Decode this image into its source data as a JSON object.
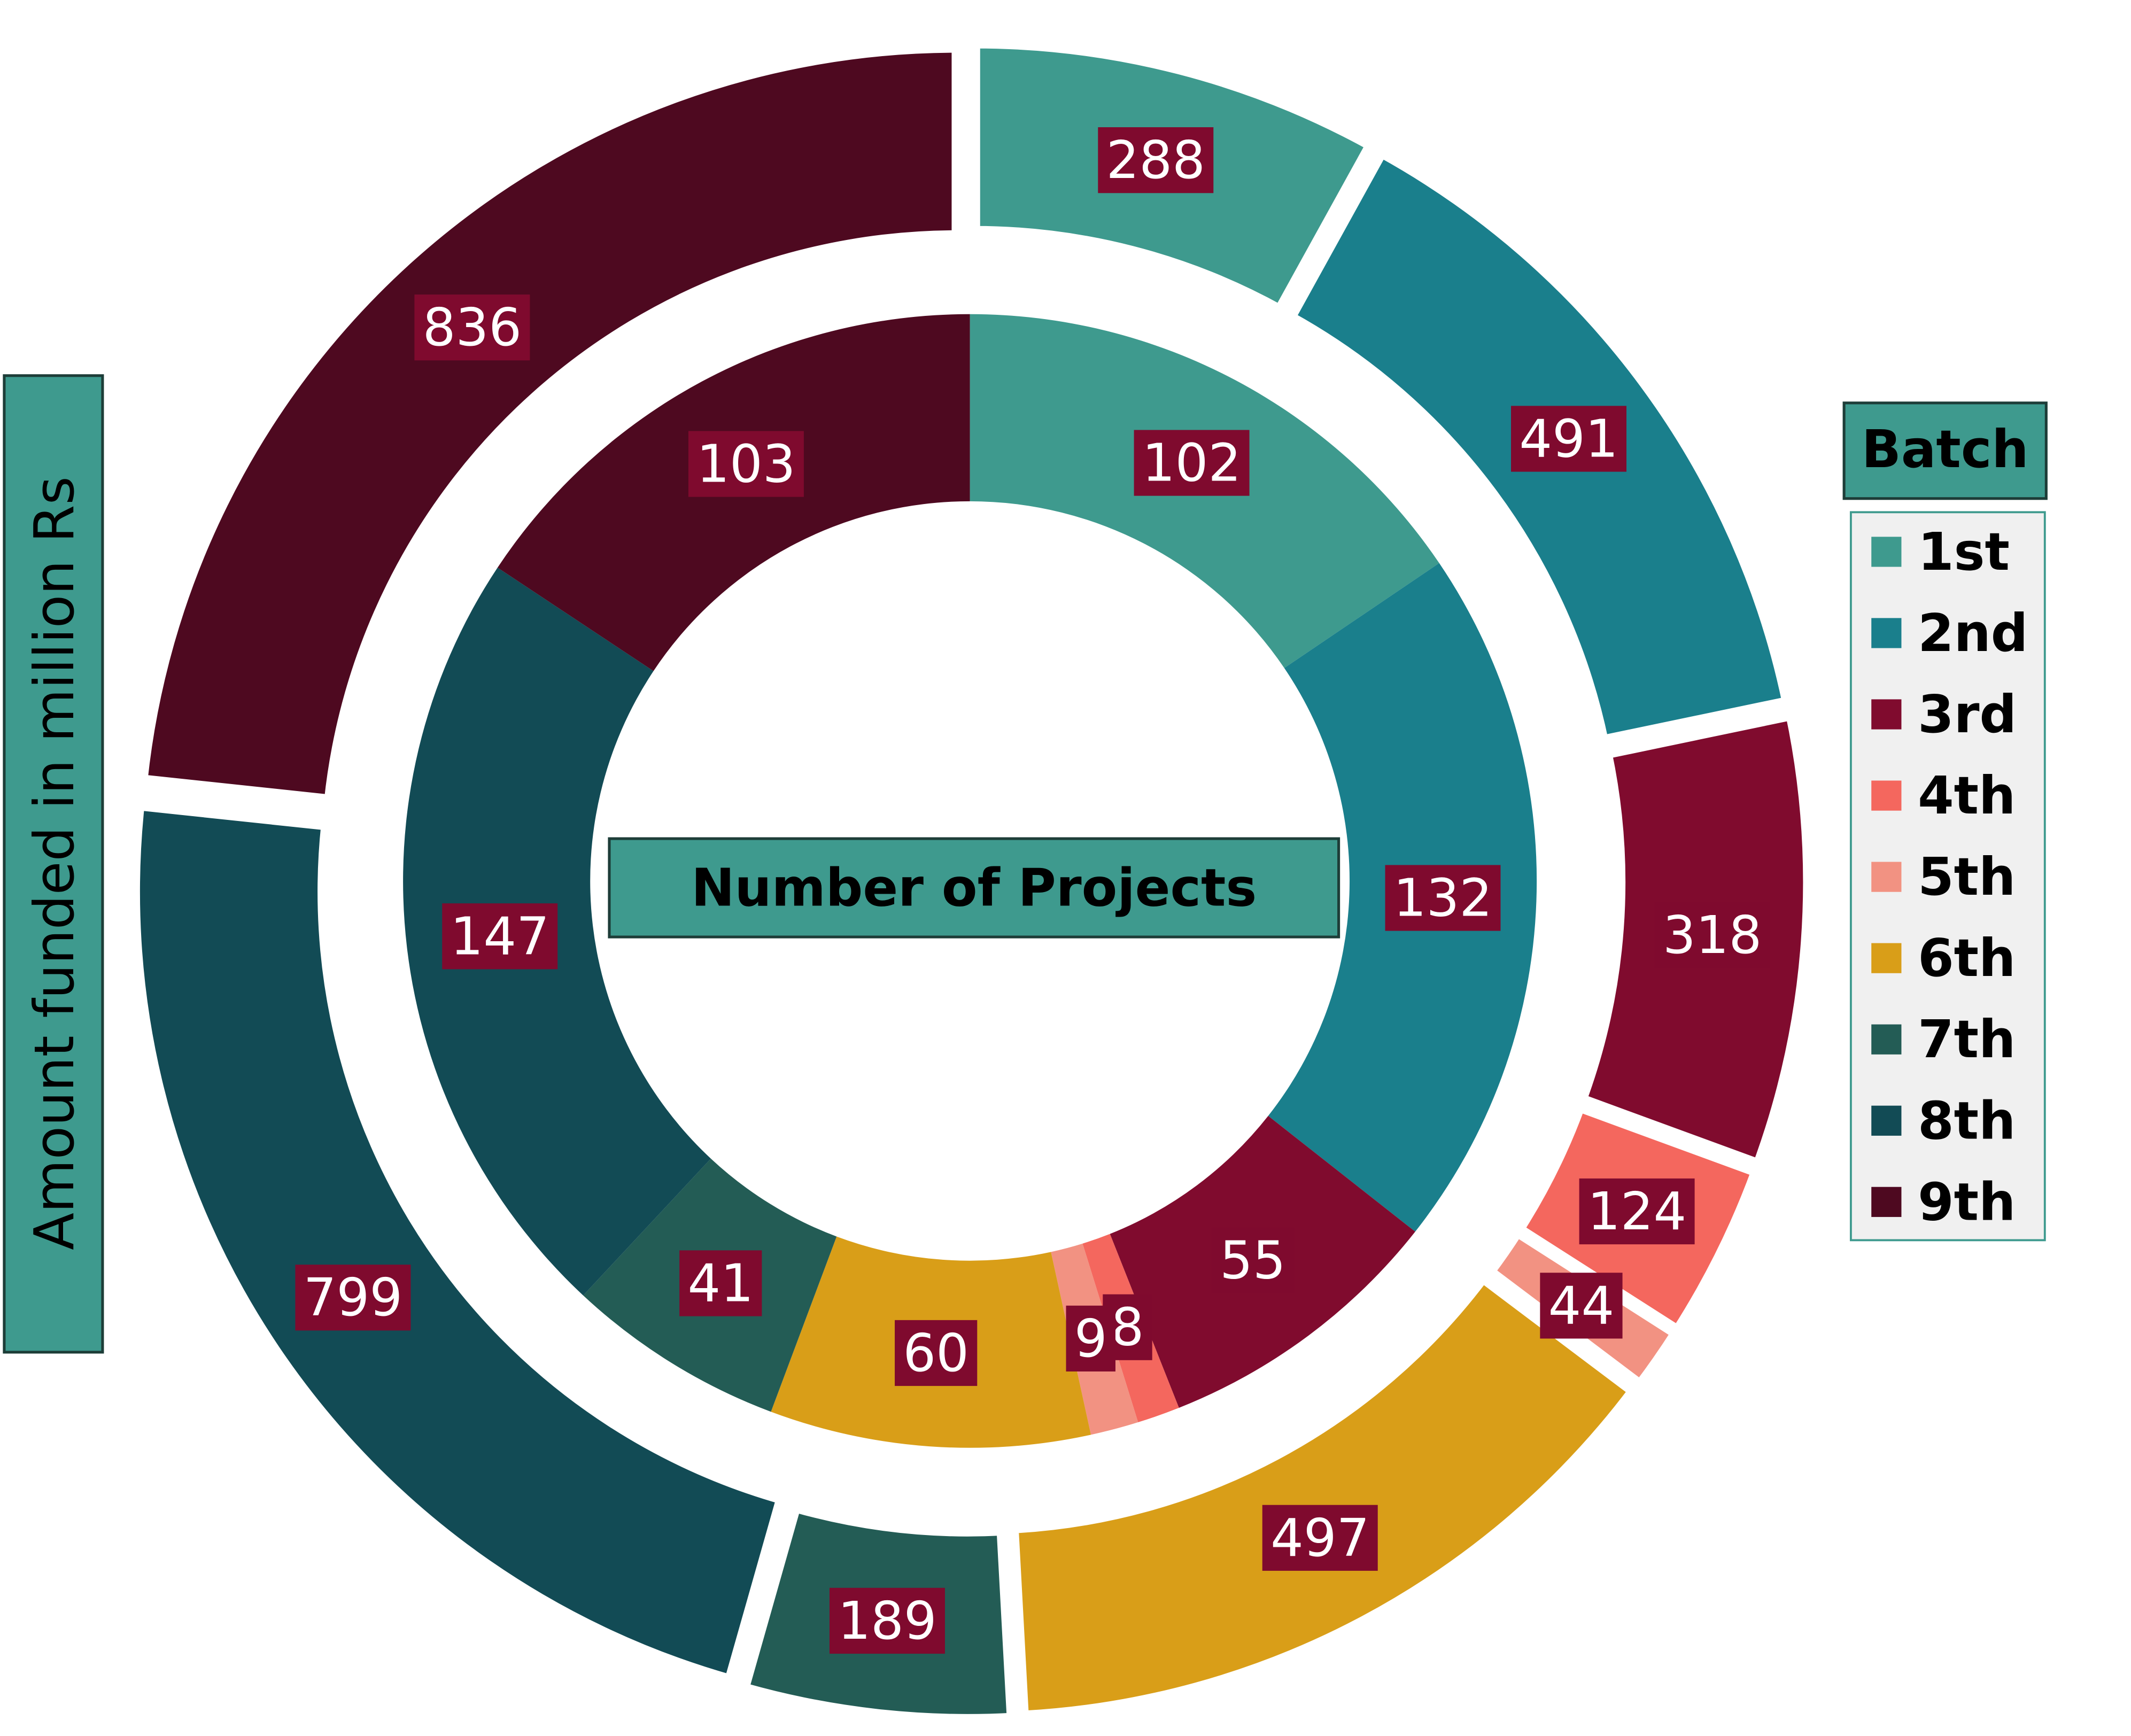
{
  "chart_data": {
    "type": "nested-donut",
    "legend_title": "Batch",
    "categories": [
      "1st",
      "2nd",
      "3rd",
      "4th",
      "5th",
      "6th",
      "7th",
      "8th",
      "9th"
    ],
    "colors": [
      "#3e9a8e",
      "#1a7f8c",
      "#800b2e",
      "#f4675e",
      "#f29282",
      "#d99e18",
      "#235c55",
      "#124b55",
      "#4e0920"
    ],
    "series": [
      {
        "name": "Number of Projects",
        "values": [
          102,
          132,
          55,
          8,
          9,
          60,
          41,
          147,
          103
        ]
      },
      {
        "name": "Amount funded in million Rs",
        "values": [
          288,
          491,
          318,
          124,
          44,
          497,
          189,
          799,
          836
        ]
      }
    ]
  }
}
